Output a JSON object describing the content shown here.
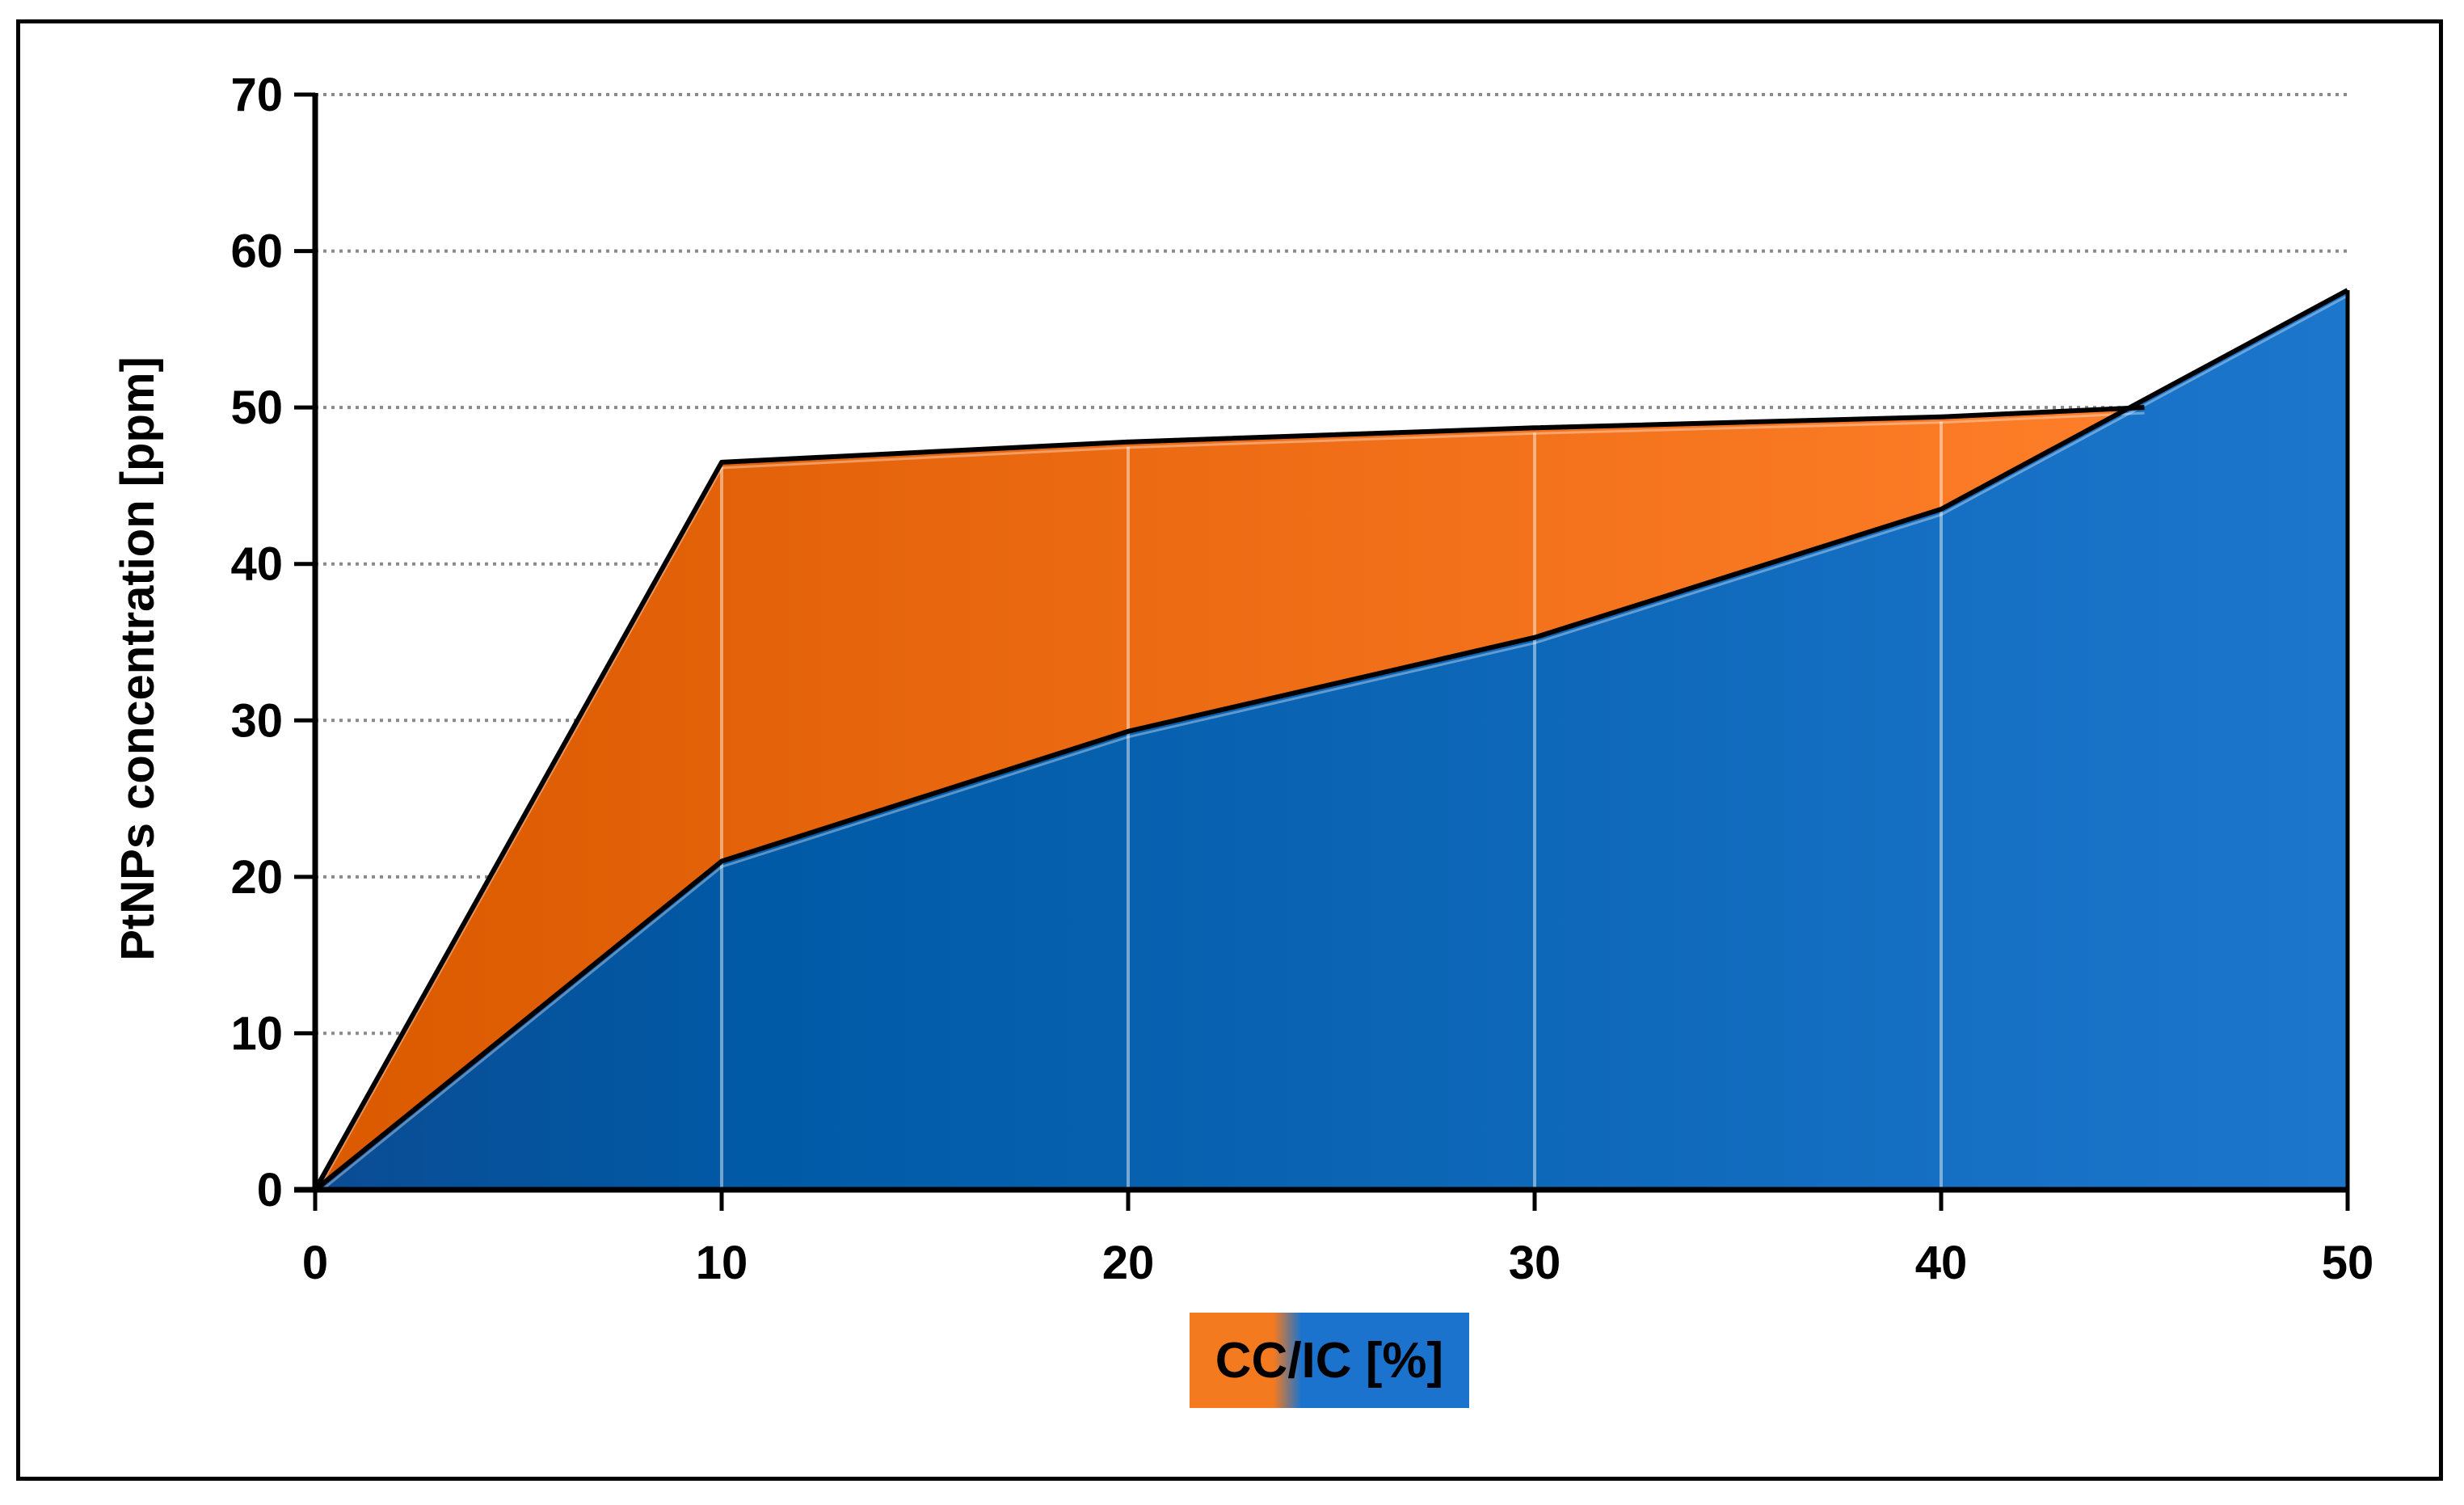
{
  "chart_data": {
    "type": "area",
    "x": [
      0,
      10,
      20,
      30,
      40,
      50
    ],
    "xlim": [
      0,
      50
    ],
    "ylim": [
      0,
      70
    ],
    "xticks": [
      "0",
      "10",
      "20",
      "30",
      "40",
      "50"
    ],
    "yticks": [
      "0",
      "10",
      "20",
      "30",
      "40",
      "50",
      "60",
      "70"
    ],
    "xlabel": "CC/IC [%]",
    "ylabel": "PtNPs concentration [ppm]",
    "grid": "horizontal dotted",
    "series": [
      {
        "name": "",
        "color": "#E8650A",
        "values": [
          0,
          46.5,
          47.8,
          48.7,
          49.4,
          50.0
        ]
      },
      {
        "name": "",
        "color": "#1565C0",
        "values": [
          0,
          21.0,
          29.3,
          35.3,
          43.5,
          57.5
        ]
      }
    ],
    "upper_endpoint": {
      "x": 45,
      "y": 50.0
    },
    "xlabel_gradient": [
      "#F47A20",
      "#1B73CE"
    ]
  }
}
